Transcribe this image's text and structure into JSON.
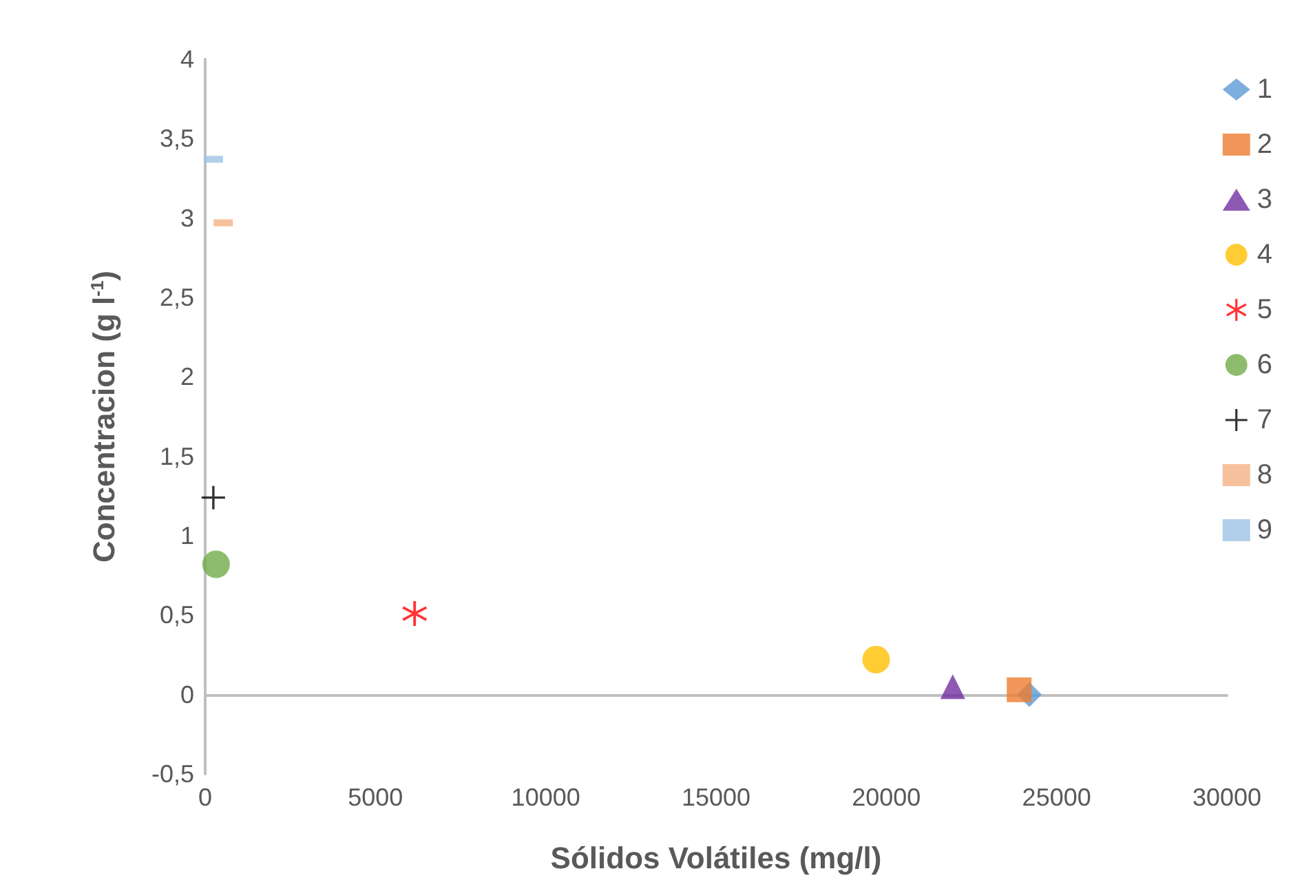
{
  "chart_data": {
    "type": "scatter",
    "xlabel": "Sólidos Volátiles (mg/l)",
    "ylabel": "Concentracion (g l$^{-1}$)",
    "xlim": [
      0,
      30000
    ],
    "xticks": [
      0,
      5000,
      10000,
      15000,
      20000,
      25000,
      30000
    ],
    "ylim": [
      -0.5,
      4
    ],
    "yticks": [
      {
        "value": -0.5,
        "label": "-0,5"
      },
      0,
      {
        "value": 0.5,
        "label": "0,5"
      },
      1,
      {
        "value": 1.5,
        "label": "1,5"
      },
      2,
      {
        "value": 2.5,
        "label": "2,5"
      },
      3,
      {
        "value": 3.5,
        "label": "3,5"
      },
      4
    ],
    "legend": "right",
    "series": [
      {
        "name": "1",
        "color": "#5b9bd5",
        "marker": "diamond",
        "x": [
          24200
        ],
        "values": [
          0
        ]
      },
      {
        "name": "2",
        "color": "#ed7d31",
        "marker": "square",
        "x": [
          23900
        ],
        "values": [
          0.03
        ]
      },
      {
        "name": "3",
        "color": "#7030a0",
        "marker": "triangle",
        "x": [
          21950
        ],
        "values": [
          0.05
        ]
      },
      {
        "name": "4",
        "color": "#ffc000",
        "marker": "circle",
        "x": [
          19700
        ],
        "values": [
          0.22
        ]
      },
      {
        "name": "5",
        "color": "#ff0000",
        "marker": "star",
        "x": [
          6150
        ],
        "values": [
          0.51
        ]
      },
      {
        "name": "6",
        "color": "#70ad47",
        "marker": "circle",
        "x": [
          320
        ],
        "values": [
          0.82
        ]
      },
      {
        "name": "7",
        "color": "#000000",
        "marker": "cross",
        "x": [
          240
        ],
        "values": [
          1.24
        ]
      },
      {
        "name": "8",
        "color": "#f4b183",
        "x": [
          530
        ],
        "values": [
          2.97
        ]
      },
      {
        "name": "9",
        "color": "#9dc3e6",
        "x": [
          240
        ],
        "values": [
          3.37
        ]
      }
    ]
  }
}
